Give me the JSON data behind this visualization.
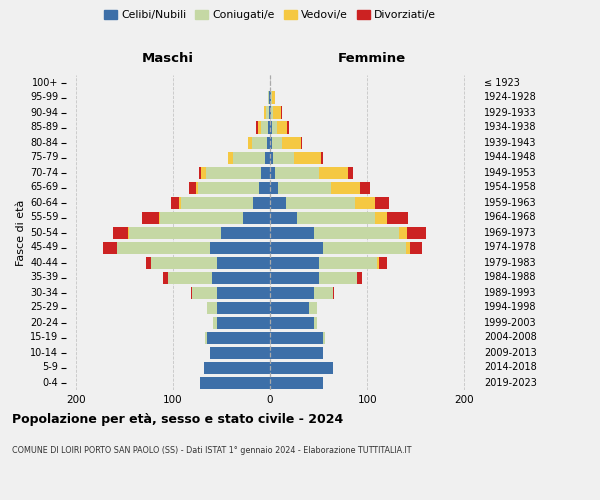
{
  "age_groups": [
    "0-4",
    "5-9",
    "10-14",
    "15-19",
    "20-24",
    "25-29",
    "30-34",
    "35-39",
    "40-44",
    "45-49",
    "50-54",
    "55-59",
    "60-64",
    "65-69",
    "70-74",
    "75-79",
    "80-84",
    "85-89",
    "90-94",
    "95-99",
    "100+"
  ],
  "birth_years": [
    "2019-2023",
    "2014-2018",
    "2009-2013",
    "2004-2008",
    "1999-2003",
    "1994-1998",
    "1989-1993",
    "1984-1988",
    "1979-1983",
    "1974-1978",
    "1969-1973",
    "1964-1968",
    "1959-1963",
    "1954-1958",
    "1949-1953",
    "1944-1948",
    "1939-1943",
    "1934-1938",
    "1929-1933",
    "1924-1928",
    "≤ 1923"
  ],
  "male_celibi": [
    72,
    68,
    62,
    65,
    55,
    55,
    55,
    60,
    55,
    62,
    50,
    28,
    17,
    11,
    9,
    5,
    3,
    2,
    1,
    1,
    0
  ],
  "male_coniugati": [
    0,
    0,
    0,
    2,
    4,
    10,
    25,
    45,
    68,
    95,
    95,
    85,
    75,
    63,
    57,
    33,
    16,
    7,
    3,
    1,
    0
  ],
  "male_vedovi": [
    0,
    0,
    0,
    0,
    0,
    0,
    0,
    0,
    0,
    1,
    1,
    1,
    2,
    2,
    5,
    5,
    4,
    3,
    2,
    0,
    0
  ],
  "male_divorziati": [
    0,
    0,
    0,
    0,
    0,
    0,
    1,
    5,
    5,
    14,
    16,
    18,
    8,
    7,
    2,
    0,
    0,
    2,
    0,
    0,
    0
  ],
  "female_celibi": [
    55,
    65,
    55,
    55,
    45,
    40,
    45,
    50,
    50,
    55,
    45,
    28,
    16,
    8,
    5,
    3,
    2,
    2,
    1,
    1,
    0
  ],
  "female_coniugati": [
    0,
    0,
    0,
    2,
    3,
    8,
    20,
    40,
    60,
    85,
    88,
    80,
    72,
    55,
    45,
    22,
    10,
    5,
    2,
    1,
    0
  ],
  "female_vedovi": [
    0,
    0,
    0,
    0,
    0,
    0,
    0,
    0,
    2,
    4,
    8,
    12,
    20,
    30,
    30,
    28,
    20,
    10,
    8,
    3,
    0
  ],
  "female_divorziati": [
    0,
    0,
    0,
    0,
    0,
    0,
    1,
    5,
    8,
    12,
    20,
    22,
    15,
    10,
    5,
    2,
    1,
    3,
    1,
    0,
    0
  ],
  "colors": {
    "celibi": "#3d6fa8",
    "coniugati": "#c5d8a4",
    "vedovi": "#f5c842",
    "divorziati": "#cc2222"
  },
  "xlim": 210,
  "title": "Popolazione per età, sesso e stato civile - 2024",
  "subtitle": "COMUNE DI LOIRI PORTO SAN PAOLO (SS) - Dati ISTAT 1° gennaio 2024 - Elaborazione TUTTITALIA.IT",
  "xlabel_left": "Maschi",
  "xlabel_right": "Femmine",
  "ylabel_left": "Fasce di età",
  "background_color": "#f0f0f0",
  "legend_labels": [
    "Celibi/Nubili",
    "Coniugati/e",
    "Vedovi/e",
    "Divorziati/e"
  ],
  "xticks": [
    -200,
    -100,
    0,
    100,
    200
  ]
}
